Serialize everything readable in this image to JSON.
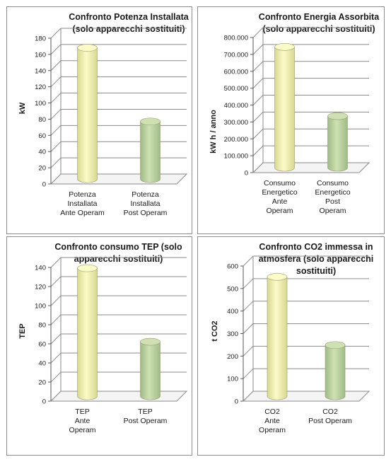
{
  "chart_data": [
    {
      "type": "bar",
      "title": "Confronto Potenza Installata\n(solo apparecchi sostituiti)",
      "ylabel": "kW",
      "ylim": [
        0,
        180
      ],
      "yticks": [
        "0",
        "20",
        "40",
        "60",
        "80",
        "100",
        "120",
        "140",
        "160",
        "180"
      ],
      "categories": [
        "Potenza\nInstallata\nAnte Operam",
        "Potenza\nInstallata\nPost Operam"
      ],
      "values": [
        162,
        71
      ],
      "colors": [
        "#fbfbc8",
        "#cfe1b3"
      ]
    },
    {
      "type": "bar",
      "title": "Confronto Energia Assorbita\n(solo apparecchi sostituiti)",
      "ylabel": "kW h / anno",
      "ylim": [
        0,
        800000
      ],
      "yticks": [
        "0",
        "100.000",
        "200.000",
        "300.000",
        "400.000",
        "500.000",
        "600.000",
        "700.000",
        "800.000"
      ],
      "categories": [
        "Consumo\nEnergetico\nAnte\nOperam",
        "Consumo\nEnergetico\nPost\nOperam"
      ],
      "values": [
        715000,
        305000
      ],
      "colors": [
        "#fbfbc8",
        "#cfe1b3"
      ]
    },
    {
      "type": "bar",
      "title": "Confronto consumo TEP (solo\napparecchi sostituiti)",
      "ylabel": "TEP",
      "ylim": [
        0,
        140
      ],
      "yticks": [
        "0",
        "20",
        "40",
        "60",
        "80",
        "100",
        "120",
        "140"
      ],
      "categories": [
        "TEP\nAnte\nOperam",
        "TEP\nPost Operam"
      ],
      "values": [
        134,
        57
      ],
      "colors": [
        "#fbfbc8",
        "#cfe1b3"
      ]
    },
    {
      "type": "bar",
      "title": "Confronto CO2 immessa in\natmosfera (solo apparecchi\nsostituiti)",
      "ylabel": "t CO2",
      "ylim": [
        0,
        600
      ],
      "yticks": [
        "0",
        "100",
        "200",
        "300",
        "400",
        "500",
        "600"
      ],
      "categories": [
        "CO2\nAnte\nOperam",
        "CO2\nPost Operam"
      ],
      "values": [
        530,
        227
      ],
      "colors": [
        "#fbfbc8",
        "#cfe1b3"
      ]
    }
  ]
}
